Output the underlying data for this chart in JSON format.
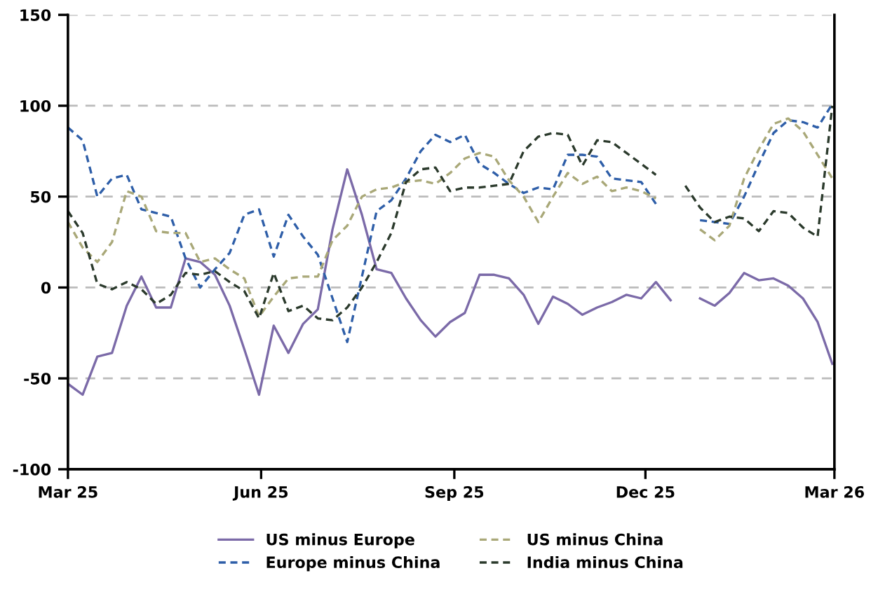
{
  "chart_data": {
    "type": "line",
    "x": [
      "2025-03-01",
      "2025-03-08",
      "2025-03-15",
      "2025-03-22",
      "2025-03-29",
      "2025-04-05",
      "2025-04-12",
      "2025-04-19",
      "2025-04-26",
      "2025-05-03",
      "2025-05-10",
      "2025-05-17",
      "2025-05-24",
      "2025-05-31",
      "2025-06-07",
      "2025-06-14",
      "2025-06-21",
      "2025-06-28",
      "2025-07-05",
      "2025-07-12",
      "2025-07-19",
      "2025-07-26",
      "2025-08-02",
      "2025-08-09",
      "2025-08-16",
      "2025-08-23",
      "2025-08-30",
      "2025-09-06",
      "2025-09-13",
      "2025-09-20",
      "2025-09-27",
      "2025-10-04",
      "2025-10-11",
      "2025-10-18",
      "2025-10-25",
      "2025-11-01",
      "2025-11-08",
      "2025-11-15",
      "2025-11-22",
      "2025-11-29",
      "2025-12-06",
      "2025-12-13",
      "2025-12-20",
      "2025-12-27",
      "2026-01-03",
      "2026-01-10",
      "2026-01-17",
      "2026-01-24",
      "2026-01-31",
      "2026-02-07",
      "2026-02-14",
      "2026-02-21",
      "2026-02-28"
    ],
    "series": [
      {
        "name": "US minus Europe",
        "color": "#7b6aa8",
        "line_style": "solid",
        "values": [
          -53,
          -59,
          -38,
          -36,
          -10,
          6,
          -11,
          -11,
          16,
          14,
          7,
          -10,
          -34,
          -59,
          -21,
          -36,
          -20,
          -12,
          32,
          65,
          40,
          10,
          8,
          -6,
          -18,
          -27,
          -19,
          -14,
          7,
          7,
          5,
          -4,
          -20,
          -5,
          -9,
          -15,
          -11,
          -8,
          -4,
          -6,
          3,
          -7,
          null,
          -6,
          -10,
          -3,
          8,
          4,
          5,
          1,
          -6,
          -19,
          -42
        ]
      },
      {
        "name": "Europe minus China",
        "color": "#2e5ea8",
        "line_style": "dashed",
        "values": [
          88,
          81,
          50,
          60,
          62,
          43,
          41,
          39,
          16,
          0,
          10,
          19,
          40,
          43,
          17,
          40,
          28,
          18,
          -6,
          -30,
          6,
          42,
          48,
          60,
          75,
          84,
          80,
          84,
          68,
          63,
          57,
          52,
          55,
          54,
          73,
          73,
          72,
          60,
          59,
          58,
          46,
          null,
          null,
          37,
          36,
          35,
          50,
          68,
          85,
          92,
          91,
          88,
          101
        ]
      },
      {
        "name": "US minus China",
        "color": "#a9a878",
        "line_style": "dashed",
        "values": [
          36,
          22,
          14,
          25,
          53,
          50,
          31,
          30,
          30,
          14,
          16,
          10,
          5,
          -16,
          -5,
          5,
          6,
          6,
          26,
          34,
          50,
          54,
          55,
          58,
          59,
          57,
          63,
          71,
          74,
          72,
          59,
          50,
          36,
          50,
          63,
          57,
          61,
          53,
          55,
          53,
          49,
          null,
          null,
          32,
          26,
          34,
          60,
          76,
          90,
          93,
          86,
          73,
          60
        ]
      },
      {
        "name": "India minus China",
        "color": "#2b3a2c",
        "line_style": "dashed",
        "values": [
          42,
          30,
          2,
          -1,
          3,
          -1,
          -9,
          -4,
          8,
          7,
          9,
          3,
          -2,
          -17,
          8,
          -13,
          -10,
          -17,
          -18,
          -11,
          0,
          14,
          30,
          58,
          65,
          66,
          53,
          55,
          55,
          56,
          57,
          75,
          83,
          85,
          84,
          67,
          81,
          80,
          74,
          68,
          62,
          null,
          56,
          44,
          36,
          39,
          38,
          31,
          42,
          41,
          33,
          28,
          100
        ]
      }
    ],
    "xlim": [
      "2025-03-01",
      "2026-03-01"
    ],
    "xticks": [
      {
        "value": "2025-03-01",
        "label": "Mar 25"
      },
      {
        "value": "2025-06-01",
        "label": "Jun 25"
      },
      {
        "value": "2025-09-01",
        "label": "Sep 25"
      },
      {
        "value": "2025-12-01",
        "label": "Dec 25"
      },
      {
        "value": "2026-03-01",
        "label": "Mar 26"
      }
    ],
    "ylim": [
      -100,
      150
    ],
    "yticks": [
      -100,
      -50,
      0,
      50,
      100,
      150
    ],
    "grid": "y",
    "legend": "bottom",
    "marker": "none"
  }
}
